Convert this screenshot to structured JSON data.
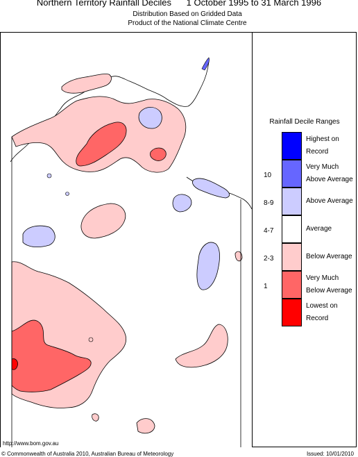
{
  "title": "Northern Territory Rainfall Deciles      1 October 1995 to 31 March 1996",
  "subtitle1": "Distribution Based on Gridded Data",
  "subtitle2": "Product of the National Climate Centre",
  "legend": {
    "title": "Rainfall Decile Ranges",
    "items": [
      {
        "label1": "Highest on",
        "label2": "Record",
        "color": "#0000ff",
        "range": ""
      },
      {
        "label1": "Very Much",
        "label2": "Above Average",
        "color": "#6666ff",
        "range": "10"
      },
      {
        "label1": "Above Average",
        "label2": "",
        "color": "#ccccff",
        "range": "8-9"
      },
      {
        "label1": "Average",
        "label2": "",
        "color": "#ffffff",
        "range": "4-7"
      },
      {
        "label1": "Below Average",
        "label2": "",
        "color": "#ffcccc",
        "range": "2-3"
      },
      {
        "label1": "Very Much",
        "label2": "Below Average",
        "color": "#ff6666",
        "range": "1"
      },
      {
        "label1": "Lowest on",
        "label2": "Record",
        "color": "#ff0000",
        "range": ""
      }
    ]
  },
  "footer": {
    "url": "http://www.bom.gov.au",
    "copyright": "© Commonwealth of Australia 2010, Australian Bureau of Meteorology",
    "issued": "Issued: 10/01/2010"
  }
}
